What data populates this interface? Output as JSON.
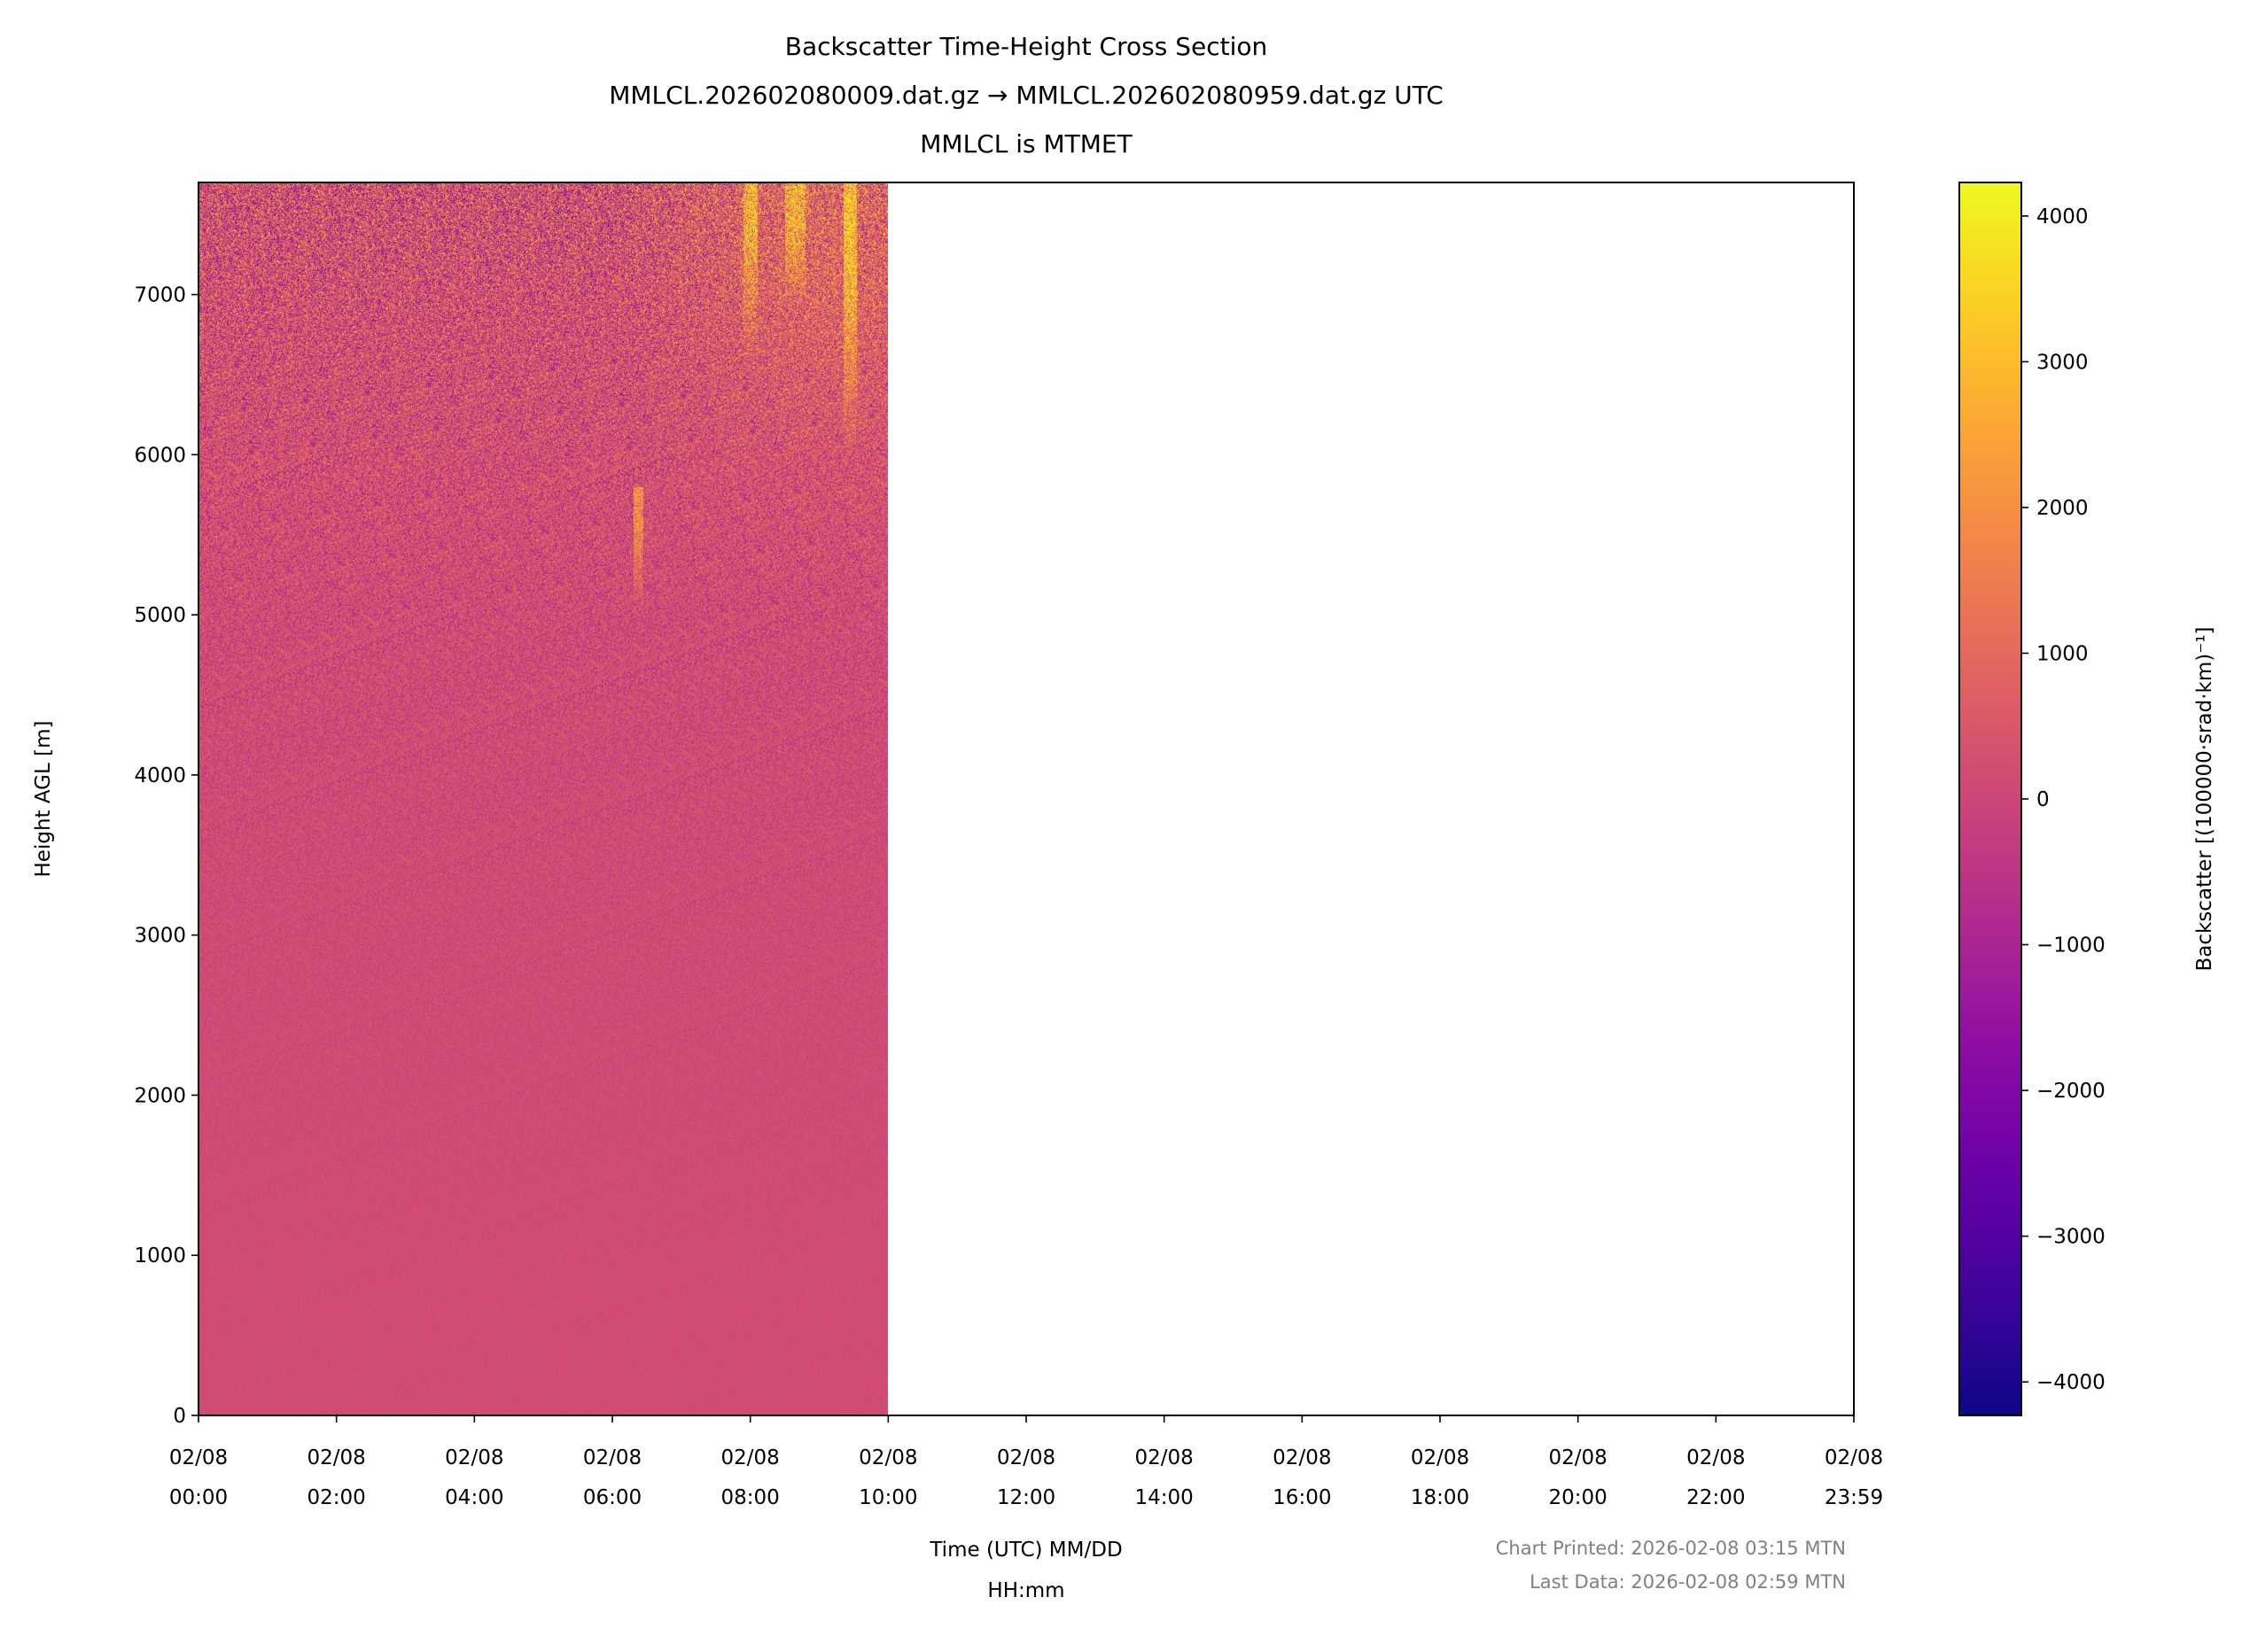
{
  "title": {
    "line1": "Backscatter Time-Height Cross Section",
    "line2": "MMLCL.202602080009.dat.gz → MMLCL.202602080959.dat.gz UTC",
    "line3": "MMLCL is MTMET"
  },
  "footer": {
    "printed": "Chart Printed: 2026-02-08 03:15 MTN",
    "last_data": "Last Data: 2026-02-08 02:59 MTN",
    "color": "#808080"
  },
  "chart_data": {
    "type": "heatmap",
    "xlabel": [
      "Time (UTC) MM/DD",
      "HH:mm"
    ],
    "ylabel": "Height AGL [m]",
    "xlim": [
      "02/08 00:00",
      "02/08 23:59"
    ],
    "ylim": [
      0,
      7700
    ],
    "x_ticks": [
      {
        "hour": 0,
        "label": [
          "02/08",
          "00:00"
        ]
      },
      {
        "hour": 2,
        "label": [
          "02/08",
          "02:00"
        ]
      },
      {
        "hour": 4,
        "label": [
          "02/08",
          "04:00"
        ]
      },
      {
        "hour": 6,
        "label": [
          "02/08",
          "06:00"
        ]
      },
      {
        "hour": 8,
        "label": [
          "02/08",
          "08:00"
        ]
      },
      {
        "hour": 10,
        "label": [
          "02/08",
          "10:00"
        ]
      },
      {
        "hour": 12,
        "label": [
          "02/08",
          "12:00"
        ]
      },
      {
        "hour": 14,
        "label": [
          "02/08",
          "14:00"
        ]
      },
      {
        "hour": 16,
        "label": [
          "02/08",
          "16:00"
        ]
      },
      {
        "hour": 18,
        "label": [
          "02/08",
          "18:00"
        ]
      },
      {
        "hour": 20,
        "label": [
          "02/08",
          "20:00"
        ]
      },
      {
        "hour": 22,
        "label": [
          "02/08",
          "22:00"
        ]
      },
      {
        "hour": 24,
        "label": [
          "02/08",
          "23:59"
        ]
      }
    ],
    "y_ticks": [
      0,
      1000,
      2000,
      3000,
      4000,
      5000,
      6000,
      7000
    ],
    "data_time_range_hours": [
      0,
      10
    ],
    "grid_times_hours": [
      0,
      1,
      2,
      3,
      4,
      5,
      6,
      7,
      8,
      9,
      10
    ],
    "grid_heights_m": [
      0,
      1000,
      2000,
      3000,
      4000,
      5000,
      6000,
      7000,
      7700
    ],
    "grid_values": [
      [
        150,
        150,
        150,
        150,
        150,
        150,
        150,
        150,
        150,
        150,
        150
      ],
      [
        150,
        150,
        150,
        150,
        150,
        150,
        150,
        150,
        150,
        150,
        150
      ],
      [
        130,
        130,
        130,
        130,
        130,
        130,
        130,
        130,
        130,
        130,
        130
      ],
      [
        120,
        120,
        120,
        120,
        120,
        120,
        120,
        120,
        120,
        120,
        120
      ],
      [
        120,
        120,
        120,
        120,
        120,
        120,
        120,
        120,
        120,
        120,
        120
      ],
      [
        150,
        150,
        150,
        150,
        150,
        150,
        150,
        150,
        150,
        150,
        150
      ],
      [
        250,
        250,
        250,
        250,
        250,
        250,
        250,
        300,
        350,
        400,
        400
      ],
      [
        300,
        300,
        300,
        300,
        300,
        300,
        300,
        500,
        700,
        900,
        800
      ],
      [
        300,
        300,
        300,
        300,
        300,
        300,
        300,
        600,
        900,
        1000,
        900
      ]
    ],
    "features": [
      {
        "time_hours": [
          6.3,
          6.45
        ],
        "height_m": [
          5000,
          5800
        ],
        "value": 2000
      },
      {
        "time_hours": [
          7.9,
          8.1
        ],
        "height_m": [
          6600,
          7700
        ],
        "value": 2200
      },
      {
        "time_hours": [
          8.5,
          8.8
        ],
        "height_m": [
          6900,
          7700
        ],
        "value": 2000
      },
      {
        "time_hours": [
          9.35,
          9.55
        ],
        "height_m": [
          6000,
          7700
        ],
        "value": 2600
      }
    ],
    "colorbar": {
      "label": "Backscatter [(100000·srad·km)⁻¹]",
      "colormap": "plasma",
      "range": [
        -4230,
        4230
      ],
      "ticks": [
        4000,
        3000,
        2000,
        1000,
        0,
        -1000,
        -2000,
        -3000,
        -4000
      ],
      "tick_labels": [
        "4000",
        "3000",
        "2000",
        "1000",
        "0",
        "−1000",
        "−2000",
        "−3000",
        "−4000"
      ],
      "colors": [
        "#0d0887",
        "#41049d",
        "#6a00a8",
        "#8f0da4",
        "#b12a90",
        "#cc4778",
        "#e16462",
        "#f2844b",
        "#fca636",
        "#fcce25",
        "#f0f921"
      ]
    }
  }
}
